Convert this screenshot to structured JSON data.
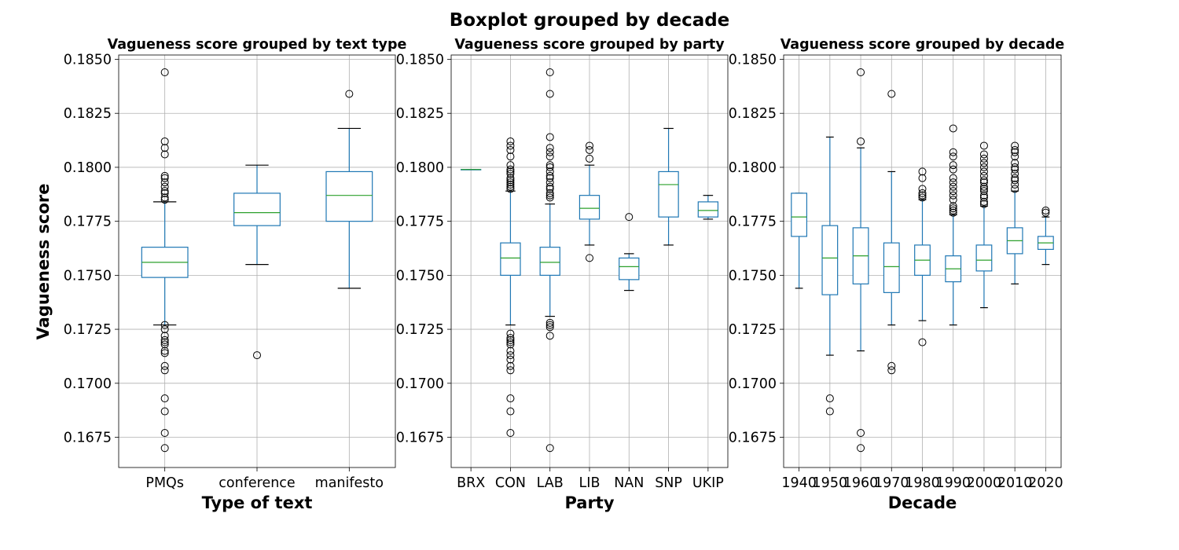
{
  "figure": {
    "suptitle": "Boxplot grouped by decade",
    "ylabel": "Vagueness score"
  },
  "chart_data": [
    {
      "type": "box",
      "title": "Vagueness score grouped by text type",
      "xlabel": "Type of text",
      "ylabel": "Vagueness score",
      "ylim": [
        0.1661,
        0.1852
      ],
      "yticks": [
        0.1675,
        0.17,
        0.1725,
        0.175,
        0.1775,
        0.18,
        0.1825,
        0.185
      ],
      "ytick_labels": [
        "0.1675",
        "0.1700",
        "0.1725",
        "0.1750",
        "0.1775",
        "0.1800",
        "0.1825",
        "0.1850"
      ],
      "grid": true,
      "categories": [
        "PMQs",
        "conference",
        "manifesto"
      ],
      "boxes": [
        {
          "low": 0.1727,
          "q1": 0.1749,
          "median": 0.1756,
          "q3": 0.1763,
          "high": 0.1784,
          "fliers": [
            0.1844,
            0.1812,
            0.1809,
            0.1806,
            0.1796,
            0.1795,
            0.1793,
            0.1791,
            0.1789,
            0.1788,
            0.1786,
            0.1785,
            0.1727,
            0.1725,
            0.1722,
            0.172,
            0.1719,
            0.1718,
            0.1715,
            0.1714,
            0.1708,
            0.1706,
            0.1693,
            0.1687,
            0.1677,
            0.167
          ]
        },
        {
          "low": 0.1755,
          "q1": 0.1773,
          "median": 0.1779,
          "q3": 0.1788,
          "high": 0.1801,
          "fliers": [
            0.1713
          ]
        },
        {
          "low": 0.1744,
          "q1": 0.1775,
          "median": 0.1787,
          "q3": 0.1798,
          "high": 0.1818,
          "fliers": [
            0.1834
          ]
        }
      ]
    },
    {
      "type": "box",
      "title": "Vagueness score grouped by party",
      "xlabel": "Party",
      "ylim": [
        0.1661,
        0.1852
      ],
      "yticks": [
        0.1675,
        0.17,
        0.1725,
        0.175,
        0.1775,
        0.18,
        0.1825,
        0.185
      ],
      "ytick_labels": [
        "0.1675",
        "0.1700",
        "0.1725",
        "0.1750",
        "0.1775",
        "0.1800",
        "0.1825",
        "0.1850"
      ],
      "grid": true,
      "categories": [
        "BRX",
        "CON",
        "LAB",
        "LIB",
        "NAN",
        "SNP",
        "UKIP"
      ],
      "boxes": [
        {
          "low": 0.1799,
          "q1": 0.1799,
          "median": 0.1799,
          "q3": 0.1799,
          "high": 0.1799,
          "fliers": []
        },
        {
          "low": 0.1727,
          "q1": 0.175,
          "median": 0.1758,
          "q3": 0.1765,
          "high": 0.1789,
          "fliers": [
            0.1812,
            0.181,
            0.1808,
            0.1805,
            0.1801,
            0.1799,
            0.1798,
            0.1797,
            0.1795,
            0.1794,
            0.1793,
            0.1792,
            0.1791,
            0.179,
            0.1723,
            0.1721,
            0.172,
            0.1719,
            0.1718,
            0.1715,
            0.1713,
            0.1711,
            0.1708,
            0.1706,
            0.1693,
            0.1687,
            0.1677
          ]
        },
        {
          "low": 0.1731,
          "q1": 0.175,
          "median": 0.1756,
          "q3": 0.1763,
          "high": 0.1783,
          "fliers": [
            0.1844,
            0.1834,
            0.1814,
            0.1809,
            0.1807,
            0.1805,
            0.1801,
            0.18,
            0.1798,
            0.1796,
            0.1795,
            0.1793,
            0.1791,
            0.179,
            0.1788,
            0.1787,
            0.1786,
            0.1728,
            0.1727,
            0.1726,
            0.1722,
            0.167
          ]
        },
        {
          "low": 0.1764,
          "q1": 0.1776,
          "median": 0.1781,
          "q3": 0.1787,
          "high": 0.1801,
          "fliers": [
            0.181,
            0.1808,
            0.1804,
            0.1758
          ]
        },
        {
          "low": 0.1743,
          "q1": 0.1748,
          "median": 0.1754,
          "q3": 0.1758,
          "high": 0.176,
          "fliers": [
            0.1777
          ]
        },
        {
          "low": 0.1764,
          "q1": 0.1777,
          "median": 0.1792,
          "q3": 0.1798,
          "high": 0.1818,
          "fliers": []
        },
        {
          "low": 0.1776,
          "q1": 0.1777,
          "median": 0.178,
          "q3": 0.1784,
          "high": 0.1787,
          "fliers": []
        }
      ]
    },
    {
      "type": "box",
      "title": "Vagueness score grouped by decade",
      "xlabel": "Decade",
      "ylim": [
        0.1661,
        0.1852
      ],
      "yticks": [
        0.1675,
        0.17,
        0.1725,
        0.175,
        0.1775,
        0.18,
        0.1825,
        0.185
      ],
      "ytick_labels": [
        "0.1675",
        "0.1700",
        "0.1725",
        "0.1750",
        "0.1775",
        "0.1800",
        "0.1825",
        "0.1850"
      ],
      "grid": true,
      "categories": [
        "1940",
        "1950",
        "1960",
        "1970",
        "1980",
        "1990",
        "2000",
        "2010",
        "2020"
      ],
      "boxes": [
        {
          "low": 0.1744,
          "q1": 0.1768,
          "median": 0.1777,
          "q3": 0.1788,
          "high": 0.1788,
          "fliers": []
        },
        {
          "low": 0.1713,
          "q1": 0.1741,
          "median": 0.1758,
          "q3": 0.1773,
          "high": 0.1814,
          "fliers": [
            0.1693,
            0.1687
          ]
        },
        {
          "low": 0.1715,
          "q1": 0.1746,
          "median": 0.1759,
          "q3": 0.1772,
          "high": 0.1809,
          "fliers": [
            0.1844,
            0.1812,
            0.1677,
            0.167
          ]
        },
        {
          "low": 0.1727,
          "q1": 0.1742,
          "median": 0.1754,
          "q3": 0.1765,
          "high": 0.1798,
          "fliers": [
            0.1834,
            0.1708,
            0.1706
          ]
        },
        {
          "low": 0.1729,
          "q1": 0.175,
          "median": 0.1757,
          "q3": 0.1764,
          "high": 0.1785,
          "fliers": [
            0.1798,
            0.1795,
            0.179,
            0.1788,
            0.1787,
            0.1786,
            0.1719
          ]
        },
        {
          "low": 0.1727,
          "q1": 0.1747,
          "median": 0.1753,
          "q3": 0.1759,
          "high": 0.1778,
          "fliers": [
            0.1818,
            0.1807,
            0.1805,
            0.1801,
            0.1799,
            0.1795,
            0.1793,
            0.1791,
            0.1789,
            0.1787,
            0.1785,
            0.1782,
            0.1781,
            0.178,
            0.1779
          ]
        },
        {
          "low": 0.1735,
          "q1": 0.1752,
          "median": 0.1757,
          "q3": 0.1764,
          "high": 0.1782,
          "fliers": [
            0.181,
            0.1806,
            0.1804,
            0.1802,
            0.18,
            0.1798,
            0.1796,
            0.1794,
            0.1793,
            0.1791,
            0.179,
            0.1789,
            0.1787,
            0.1786,
            0.1784,
            0.1783
          ]
        },
        {
          "low": 0.1746,
          "q1": 0.176,
          "median": 0.1766,
          "q3": 0.1772,
          "high": 0.1789,
          "fliers": [
            0.181,
            0.1808,
            0.1807,
            0.1805,
            0.1802,
            0.18,
            0.1799,
            0.1797,
            0.1795,
            0.1794,
            0.1792,
            0.179
          ]
        },
        {
          "low": 0.1755,
          "q1": 0.1762,
          "median": 0.1765,
          "q3": 0.1768,
          "high": 0.1777,
          "fliers": [
            0.178,
            0.1779
          ]
        }
      ]
    }
  ]
}
